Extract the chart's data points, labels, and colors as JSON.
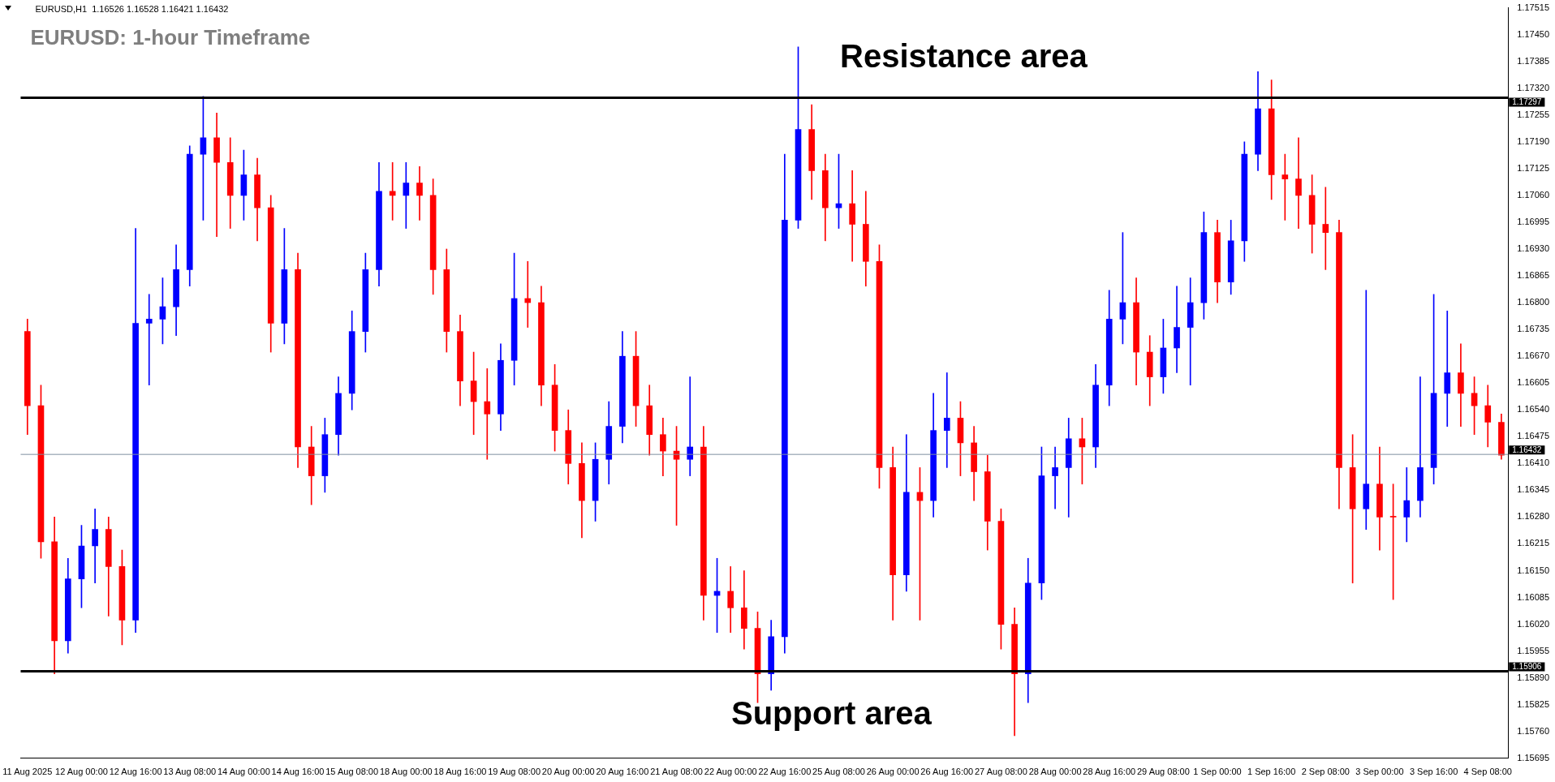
{
  "chart_data": {
    "type": "candlestick",
    "title": "EURUSD: 1-hour Timeframe",
    "annotations": [
      "EURUSD,H1  1.16526 1.16528 1.16421 1.16432",
      "Resistance area",
      "Support area"
    ],
    "categories": [
      "11 Aug 2025",
      null,
      null,
      null,
      "12 Aug 00:00",
      null,
      null,
      null,
      "12 Aug 16:00",
      null,
      null,
      null,
      "13 Aug 08:00",
      null,
      null,
      null,
      "14 Aug 00:00",
      null,
      null,
      null,
      "14 Aug 16:00",
      null,
      null,
      null,
      "15 Aug 08:00",
      null,
      null,
      null,
      "18 Aug 00:00",
      null,
      null,
      null,
      "18 Aug 16:00",
      null,
      null,
      null,
      "19 Aug 08:00",
      null,
      null,
      null,
      "20 Aug 00:00",
      null,
      null,
      null,
      "20 Aug 16:00",
      null,
      null,
      null,
      "21 Aug 08:00",
      null,
      null,
      null,
      "22 Aug 00:00",
      null,
      null,
      null,
      "22 Aug 16:00",
      null,
      null,
      null,
      "25 Aug 08:00",
      null,
      null,
      null,
      "26 Aug 00:00",
      null,
      null,
      null,
      "26 Aug 16:00",
      null,
      null,
      null,
      "27 Aug 08:00",
      null,
      null,
      null,
      "28 Aug 00:00",
      null,
      null,
      null,
      "28 Aug 16:00",
      null,
      null,
      null,
      "29 Aug 08:00",
      null,
      null,
      null,
      "1 Sep 00:00",
      null,
      null,
      null,
      "1 Sep 16:00",
      null,
      null,
      null,
      "2 Sep 08:00",
      null,
      null,
      null,
      "3 Sep 00:00",
      null,
      null,
      null,
      "3 Sep 16:00",
      null,
      null,
      null,
      "4 Sep 08:00",
      null
    ],
    "ohlc": [
      [
        1.1673,
        1.1676,
        1.1648,
        1.1655
      ],
      [
        1.1655,
        1.166,
        1.1618,
        1.1622
      ],
      [
        1.1622,
        1.1628,
        1.159,
        1.1598
      ],
      [
        1.1598,
        1.1618,
        1.1595,
        1.1613
      ],
      [
        1.1613,
        1.1626,
        1.1606,
        1.1621
      ],
      [
        1.1621,
        1.163,
        1.1612,
        1.1625
      ],
      [
        1.1625,
        1.1628,
        1.1604,
        1.1616
      ],
      [
        1.1616,
        1.162,
        1.1597,
        1.1603
      ],
      [
        1.1603,
        1.1698,
        1.16,
        1.1675
      ],
      [
        1.1675,
        1.1682,
        1.166,
        1.1676
      ],
      [
        1.1676,
        1.1686,
        1.167,
        1.1679
      ],
      [
        1.1679,
        1.1694,
        1.1672,
        1.1688
      ],
      [
        1.1688,
        1.1718,
        1.1684,
        1.1716
      ],
      [
        1.1716,
        1.173,
        1.17,
        1.172
      ],
      [
        1.172,
        1.1726,
        1.1696,
        1.1714
      ],
      [
        1.1714,
        1.172,
        1.1698,
        1.1706
      ],
      [
        1.1706,
        1.1717,
        1.17,
        1.1711
      ],
      [
        1.1711,
        1.1715,
        1.1695,
        1.1703
      ],
      [
        1.1703,
        1.1706,
        1.1668,
        1.1675
      ],
      [
        1.1675,
        1.1698,
        1.167,
        1.1688
      ],
      [
        1.1688,
        1.1692,
        1.164,
        1.1645
      ],
      [
        1.1645,
        1.165,
        1.1631,
        1.1638
      ],
      [
        1.1638,
        1.1652,
        1.1634,
        1.1648
      ],
      [
        1.1648,
        1.1662,
        1.1643,
        1.1658
      ],
      [
        1.1658,
        1.1678,
        1.1654,
        1.1673
      ],
      [
        1.1673,
        1.1692,
        1.1668,
        1.1688
      ],
      [
        1.1688,
        1.1714,
        1.1684,
        1.1707
      ],
      [
        1.1707,
        1.1714,
        1.17,
        1.1706
      ],
      [
        1.1706,
        1.1714,
        1.1698,
        1.1709
      ],
      [
        1.1709,
        1.1713,
        1.17,
        1.1706
      ],
      [
        1.1706,
        1.171,
        1.1682,
        1.1688
      ],
      [
        1.1688,
        1.1693,
        1.1668,
        1.1673
      ],
      [
        1.1673,
        1.1677,
        1.1655,
        1.1661
      ],
      [
        1.1661,
        1.1668,
        1.1648,
        1.1656
      ],
      [
        1.1656,
        1.1664,
        1.1642,
        1.1653
      ],
      [
        1.1653,
        1.167,
        1.1649,
        1.1666
      ],
      [
        1.1666,
        1.1692,
        1.166,
        1.1681
      ],
      [
        1.1681,
        1.169,
        1.1674,
        1.168
      ],
      [
        1.168,
        1.1684,
        1.1655,
        1.166
      ],
      [
        1.166,
        1.1665,
        1.1644,
        1.1649
      ],
      [
        1.1649,
        1.1654,
        1.1636,
        1.1641
      ],
      [
        1.1641,
        1.1646,
        1.1623,
        1.1632
      ],
      [
        1.1632,
        1.1646,
        1.1627,
        1.1642
      ],
      [
        1.1642,
        1.1656,
        1.1636,
        1.165
      ],
      [
        1.165,
        1.1673,
        1.1646,
        1.1667
      ],
      [
        1.1667,
        1.1673,
        1.165,
        1.1655
      ],
      [
        1.1655,
        1.166,
        1.1643,
        1.1648
      ],
      [
        1.1648,
        1.1652,
        1.1638,
        1.1644
      ],
      [
        1.1644,
        1.165,
        1.1626,
        1.1642
      ],
      [
        1.1642,
        1.1662,
        1.1638,
        1.1645
      ],
      [
        1.1645,
        1.165,
        1.1603,
        1.1609
      ],
      [
        1.1609,
        1.1618,
        1.16,
        1.161
      ],
      [
        1.161,
        1.1616,
        1.16,
        1.1606
      ],
      [
        1.1606,
        1.1615,
        1.1596,
        1.1601
      ],
      [
        1.1601,
        1.1605,
        1.1583,
        1.159
      ],
      [
        1.159,
        1.1603,
        1.1586,
        1.1599
      ],
      [
        1.1599,
        1.1716,
        1.1595,
        1.17
      ],
      [
        1.17,
        1.1742,
        1.1698,
        1.1722
      ],
      [
        1.1722,
        1.1728,
        1.1705,
        1.1712
      ],
      [
        1.1712,
        1.1716,
        1.1695,
        1.1703
      ],
      [
        1.1703,
        1.1716,
        1.1698,
        1.1704
      ],
      [
        1.1704,
        1.1712,
        1.169,
        1.1699
      ],
      [
        1.1699,
        1.1707,
        1.1684,
        1.169
      ],
      [
        1.169,
        1.1694,
        1.1635,
        1.164
      ],
      [
        1.164,
        1.1645,
        1.1603,
        1.1614
      ],
      [
        1.1614,
        1.1648,
        1.161,
        1.1634
      ],
      [
        1.1634,
        1.164,
        1.1603,
        1.1632
      ],
      [
        1.1632,
        1.1658,
        1.1628,
        1.1649
      ],
      [
        1.1649,
        1.1663,
        1.164,
        1.1652
      ],
      [
        1.1652,
        1.1656,
        1.1638,
        1.1646
      ],
      [
        1.1646,
        1.165,
        1.1632,
        1.1639
      ],
      [
        1.1639,
        1.1643,
        1.162,
        1.1627
      ],
      [
        1.1627,
        1.163,
        1.1596,
        1.1602
      ],
      [
        1.1602,
        1.1606,
        1.1575,
        1.159
      ],
      [
        1.159,
        1.1618,
        1.1583,
        1.1612
      ],
      [
        1.1612,
        1.1645,
        1.1608,
        1.1638
      ],
      [
        1.1638,
        1.1645,
        1.163,
        1.164
      ],
      [
        1.164,
        1.1652,
        1.1628,
        1.1647
      ],
      [
        1.1647,
        1.1652,
        1.1636,
        1.1645
      ],
      [
        1.1645,
        1.1665,
        1.164,
        1.166
      ],
      [
        1.166,
        1.1683,
        1.1655,
        1.1676
      ],
      [
        1.1676,
        1.1697,
        1.167,
        1.168
      ],
      [
        1.168,
        1.1686,
        1.166,
        1.1668
      ],
      [
        1.1668,
        1.1672,
        1.1655,
        1.1662
      ],
      [
        1.1662,
        1.1676,
        1.1658,
        1.1669
      ],
      [
        1.1669,
        1.1684,
        1.1663,
        1.1674
      ],
      [
        1.1674,
        1.1686,
        1.166,
        1.168
      ],
      [
        1.168,
        1.1702,
        1.1676,
        1.1697
      ],
      [
        1.1697,
        1.17,
        1.168,
        1.1685
      ],
      [
        1.1685,
        1.17,
        1.1682,
        1.1695
      ],
      [
        1.1695,
        1.1719,
        1.169,
        1.1716
      ],
      [
        1.1716,
        1.1736,
        1.1712,
        1.1727
      ],
      [
        1.1727,
        1.1734,
        1.1705,
        1.1711
      ],
      [
        1.1711,
        1.1716,
        1.17,
        1.171
      ],
      [
        1.171,
        1.172,
        1.1698,
        1.1706
      ],
      [
        1.1706,
        1.1711,
        1.1692,
        1.1699
      ],
      [
        1.1699,
        1.1708,
        1.1688,
        1.1697
      ],
      [
        1.1697,
        1.17,
        1.163,
        1.164
      ],
      [
        1.164,
        1.1648,
        1.1612,
        1.163
      ],
      [
        1.163,
        1.1683,
        1.1625,
        1.1636
      ],
      [
        1.1636,
        1.1645,
        1.162,
        1.1628
      ],
      [
        1.1628,
        1.1636,
        1.1608,
        1.1628
      ],
      [
        1.1628,
        1.164,
        1.1622,
        1.1632
      ],
      [
        1.1632,
        1.1662,
        1.1628,
        1.164
      ],
      [
        1.164,
        1.1682,
        1.1636,
        1.1658
      ],
      [
        1.1658,
        1.1678,
        1.165,
        1.1663
      ],
      [
        1.1663,
        1.167,
        1.165,
        1.1658
      ],
      [
        1.1658,
        1.1662,
        1.1648,
        1.1655
      ],
      [
        1.1655,
        1.166,
        1.1645,
        1.1651
      ],
      [
        1.1651,
        1.1653,
        1.1642,
        1.1643
      ]
    ],
    "colors": [
      "#ff0000",
      "#ff0000",
      "#ff0000",
      "#0000ff",
      "#0000ff",
      "#0000ff",
      "#ff0000",
      "#ff0000",
      "#0000ff",
      "#0000ff",
      "#0000ff",
      "#0000ff",
      "#0000ff",
      "#0000ff",
      "#ff0000",
      "#ff0000",
      "#0000ff",
      "#ff0000",
      "#ff0000",
      "#0000ff",
      "#ff0000",
      "#ff0000",
      "#0000ff",
      "#0000ff",
      "#0000ff",
      "#0000ff",
      "#0000ff",
      "#ff0000",
      "#0000ff",
      "#ff0000",
      "#ff0000",
      "#ff0000",
      "#ff0000",
      "#ff0000",
      "#ff0000",
      "#0000ff",
      "#0000ff",
      "#ff0000",
      "#ff0000",
      "#ff0000",
      "#ff0000",
      "#ff0000",
      "#0000ff",
      "#0000ff",
      "#0000ff",
      "#ff0000",
      "#ff0000",
      "#ff0000",
      "#ff0000",
      "#0000ff",
      "#ff0000",
      "#0000ff",
      "#ff0000",
      "#ff0000",
      "#ff0000",
      "#0000ff",
      "#0000ff",
      "#0000ff",
      "#ff0000",
      "#ff0000",
      "#0000ff",
      "#ff0000",
      "#ff0000",
      "#ff0000",
      "#ff0000",
      "#0000ff",
      "#ff0000",
      "#0000ff",
      "#0000ff",
      "#ff0000",
      "#ff0000",
      "#ff0000",
      "#ff0000",
      "#ff0000",
      "#0000ff",
      "#0000ff",
      "#0000ff",
      "#0000ff",
      "#ff0000",
      "#0000ff",
      "#0000ff",
      "#0000ff",
      "#ff0000",
      "#ff0000",
      "#0000ff",
      "#0000ff",
      "#0000ff",
      "#0000ff",
      "#ff0000",
      "#0000ff",
      "#0000ff",
      "#0000ff",
      "#ff0000",
      "#ff0000",
      "#ff0000",
      "#ff0000",
      "#ff0000",
      "#ff0000",
      "#ff0000",
      "#0000ff",
      "#ff0000",
      "#ff0000",
      "#0000ff",
      "#0000ff",
      "#0000ff",
      "#0000ff",
      "#ff0000",
      "#ff0000",
      "#ff0000",
      "#ff0000"
    ],
    "ylim": [
      1.15695,
      1.17515
    ],
    "yticks": [
      1.17515,
      {
        "value": 1.1745,
        "label": "1.17450"
      },
      1.17385,
      {
        "value": 1.1732,
        "label": "1.17320"
      },
      1.17255,
      {
        "value": 1.1719,
        "label": "1.17190"
      },
      1.17125,
      {
        "value": 1.1706,
        "label": "1.17060"
      },
      1.16995,
      {
        "value": 1.1693,
        "label": "1.16930"
      },
      1.16865,
      {
        "value": 1.168,
        "label": "1.16800"
      },
      1.16735,
      {
        "value": 1.1667,
        "label": "1.16670"
      },
      1.16605,
      {
        "value": 1.1654,
        "label": "1.16540"
      },
      1.16475,
      {
        "value": 1.1641,
        "label": "1.16410"
      },
      1.16345,
      {
        "value": 1.1628,
        "label": "1.16280"
      },
      1.16215,
      {
        "value": 1.1615,
        "label": "1.16150"
      },
      1.16085,
      {
        "value": 1.1602,
        "label": "1.16020"
      },
      1.15955,
      {
        "value": 1.1589,
        "label": "1.15890"
      },
      1.15825,
      {
        "value": 1.1576,
        "label": "1.15760"
      },
      1.15695
    ],
    "ref_lines": [
      {
        "axis": "y",
        "value": 1.17297,
        "label": "1.17297",
        "color": "#000000"
      },
      {
        "axis": "y",
        "value": 1.15906,
        "label": "1.15906",
        "color": "#000000"
      },
      {
        "axis": "y",
        "value": 1.16432,
        "label": "1.16432",
        "color": "#7f8fa0"
      }
    ],
    "grid": false,
    "legend": false
  }
}
